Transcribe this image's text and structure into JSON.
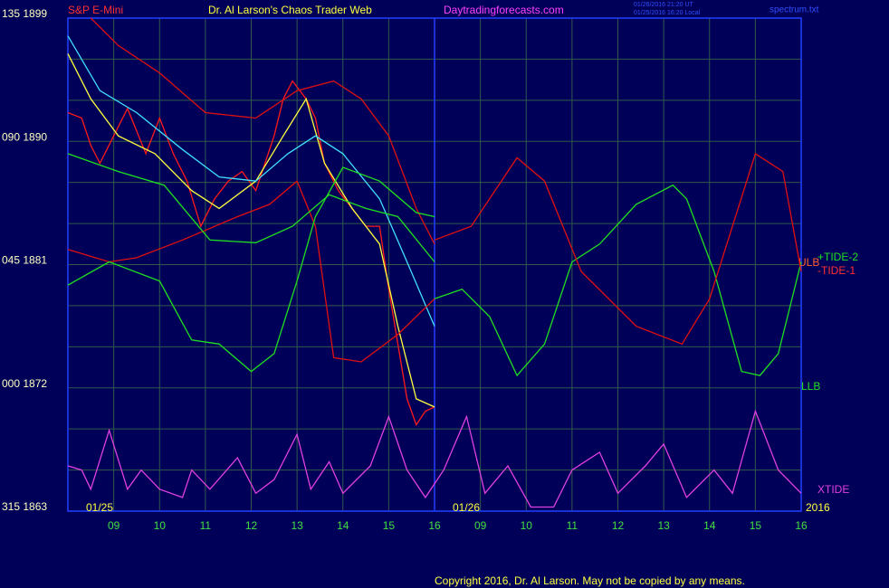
{
  "chart_data": {
    "type": "line",
    "instrument": "S&P E-Mini",
    "title": "Dr. Al Larson's Chaos Trader Web",
    "website": "Daytradingforecasts.com",
    "timestamps": [
      "01/26/2016 21:20 UT",
      "01/25/2016 16:20 Local"
    ],
    "file": "spectrum.txt",
    "date_labels": [
      "01/25",
      "01/26",
      "2016"
    ],
    "copyright": "Copyright 2016, Dr. Al Larson. May not be copied by any means.",
    "xlim": [
      8,
      24
    ],
    "xticks": [
      {
        "value": 9,
        "label": "09"
      },
      10,
      11,
      12,
      13,
      14,
      15,
      16,
      {
        "value": 17,
        "label": "09"
      },
      {
        "value": 18,
        "label": "10"
      },
      {
        "value": 19,
        "label": "11"
      },
      {
        "value": 20,
        "label": "12"
      },
      {
        "value": 21,
        "label": "13"
      },
      {
        "value": 22,
        "label": "14"
      },
      {
        "value": 23,
        "label": "15"
      },
      {
        "value": 24,
        "label": "16"
      }
    ],
    "ylim": [
      1863,
      1899
    ],
    "yticks": [
      {
        "value": 1899,
        "label": "135  1899"
      },
      {
        "value": 1890,
        "label": "090  1890"
      },
      {
        "value": 1881,
        "label": "045  1881"
      },
      {
        "value": 1872,
        "label": "000  1872"
      },
      {
        "value": 1863,
        "label": "315  1863"
      }
    ],
    "minor_yticks": [
      1896,
      1893,
      1887,
      1884,
      1878,
      1875,
      1869,
      1866
    ],
    "grid": true,
    "day_divider": 16,
    "series": [
      {
        "color": "#ff1a1a",
        "x": [
          8.0,
          8.3,
          8.5,
          8.7,
          9.0,
          9.3,
          9.7,
          10.0,
          10.3,
          10.6,
          10.9,
          11.2,
          11.5,
          11.8,
          12.1,
          12.3,
          12.5,
          12.7,
          12.9,
          13.2,
          13.4,
          13.6,
          13.9,
          14.2,
          14.5,
          14.8,
          15.0,
          15.2,
          15.4,
          15.6,
          15.8,
          16.0
        ],
        "values": [
          1892.1,
          1891.7,
          1889.7,
          1888.4,
          1890.4,
          1892.4,
          1889.1,
          1891.7,
          1889.1,
          1887.1,
          1883.8,
          1885.8,
          1887.1,
          1887.8,
          1886.4,
          1888.4,
          1890.4,
          1893.1,
          1894.4,
          1893.1,
          1891.7,
          1888.4,
          1886.4,
          1885.1,
          1883.8,
          1883.8,
          1879.2,
          1875.2,
          1871.2,
          1869.3,
          1870.3,
          1870.6
        ]
      },
      {
        "color": "#ffff40",
        "x": [
          8.0,
          8.5,
          9.1,
          9.9,
          10.7,
          11.3,
          12.1,
          12.7,
          13.2,
          13.6,
          14.2,
          14.8,
          15.2,
          15.6,
          16.0
        ],
        "values": [
          1896.4,
          1893.1,
          1890.4,
          1889.1,
          1886.4,
          1885.1,
          1887.1,
          1890.4,
          1893.1,
          1888.4,
          1885.1,
          1882.5,
          1876.5,
          1871.2,
          1870.6
        ]
      },
      {
        "color": "#40e0ff",
        "x": [
          8.0,
          8.7,
          9.5,
          10.5,
          11.3,
          12.1,
          12.8,
          13.4,
          14.0,
          14.8,
          15.4,
          16.0
        ],
        "values": [
          1897.7,
          1893.7,
          1892.1,
          1889.4,
          1887.4,
          1887.1,
          1889.1,
          1890.4,
          1889.1,
          1885.8,
          1881.2,
          1876.5
        ]
      },
      {
        "name": "ULB",
        "color": "#e01010",
        "x": [
          8.5,
          9.1,
          10.0,
          11.0,
          12.1,
          13.0,
          13.8,
          14.4,
          15.0,
          15.6,
          16.0
        ],
        "values": [
          1899.0,
          1897.0,
          1895.0,
          1892.1,
          1891.7,
          1893.7,
          1894.4,
          1893.1,
          1890.4,
          1885.1,
          1882.5
        ]
      },
      {
        "color": "#e01010",
        "x": [
          8.0,
          8.9,
          9.5,
          10.5,
          11.7,
          12.4,
          13.0,
          13.4,
          13.8,
          14.4,
          15.2,
          16.0
        ],
        "values": [
          1882.1,
          1881.2,
          1881.5,
          1882.8,
          1884.5,
          1885.4,
          1887.1,
          1883.8,
          1874.2,
          1873.9,
          1875.9,
          1878.5
        ]
      },
      {
        "name": "LLB",
        "color": "#20e020",
        "x": [
          8.0,
          8.9,
          10.0,
          10.7,
          11.3,
          12.0,
          12.5,
          13.0,
          13.4,
          14.0,
          14.8,
          15.6,
          16.0
        ],
        "values": [
          1879.5,
          1881.2,
          1879.8,
          1875.5,
          1875.2,
          1873.2,
          1874.5,
          1879.8,
          1884.5,
          1888.1,
          1887.1,
          1884.8,
          1884.5
        ]
      },
      {
        "color": "#20e020",
        "x": [
          8.0,
          9.1,
          10.1,
          11.1,
          12.1,
          12.9,
          13.7,
          14.5,
          15.2,
          16.0
        ],
        "values": [
          1889.1,
          1887.8,
          1886.8,
          1882.8,
          1882.6,
          1883.8,
          1886.1,
          1885.1,
          1884.5,
          1881.2
        ]
      },
      {
        "name": "+TIDE-2",
        "color": "#20e020",
        "x": [
          16.0,
          16.6,
          17.2,
          17.8,
          18.4,
          19.0,
          19.6,
          20.4,
          21.2,
          21.5,
          22.1,
          22.7,
          23.1,
          23.5,
          24.0
        ],
        "values": [
          1878.5,
          1879.2,
          1877.2,
          1872.9,
          1875.2,
          1881.2,
          1882.5,
          1885.4,
          1886.8,
          1885.8,
          1880.5,
          1873.2,
          1872.9,
          1874.5,
          1881.2
        ]
      },
      {
        "name": "-TIDE-1",
        "color": "#e01010",
        "x": [
          16.0,
          16.8,
          17.8,
          18.4,
          19.2,
          20.4,
          21.4,
          22.0,
          23.0,
          23.6,
          24.0
        ],
        "values": [
          1882.8,
          1883.8,
          1888.8,
          1887.1,
          1880.5,
          1876.5,
          1875.2,
          1878.5,
          1889.1,
          1887.8,
          1880.5
        ]
      },
      {
        "name": "XTIDE",
        "color": "#e040e0",
        "x": [
          8.0,
          8.3,
          8.5,
          8.9,
          9.3,
          9.6,
          10.0,
          10.5,
          10.7,
          11.1,
          11.7,
          12.1,
          12.5,
          13.0,
          13.3,
          13.7,
          14.0,
          14.6,
          15.0,
          15.4,
          15.8,
          16.2,
          16.7,
          17.1,
          17.6,
          18.1,
          18.6,
          19.0,
          19.6,
          20.0,
          20.6,
          21.0,
          21.5,
          22.1,
          22.5,
          23.0,
          23.5,
          24.0
        ],
        "values": [
          1866.3,
          1866.0,
          1864.6,
          1868.9,
          1864.6,
          1866.0,
          1864.6,
          1864.0,
          1866.0,
          1864.6,
          1866.9,
          1864.3,
          1865.3,
          1868.6,
          1864.6,
          1866.6,
          1864.3,
          1866.3,
          1869.9,
          1866.0,
          1864.0,
          1866.0,
          1869.9,
          1864.3,
          1866.3,
          1863.3,
          1863.3,
          1866.0,
          1867.3,
          1864.3,
          1866.3,
          1867.9,
          1864.0,
          1866.0,
          1864.3,
          1870.3,
          1866.0,
          1864.3
        ]
      }
    ]
  }
}
